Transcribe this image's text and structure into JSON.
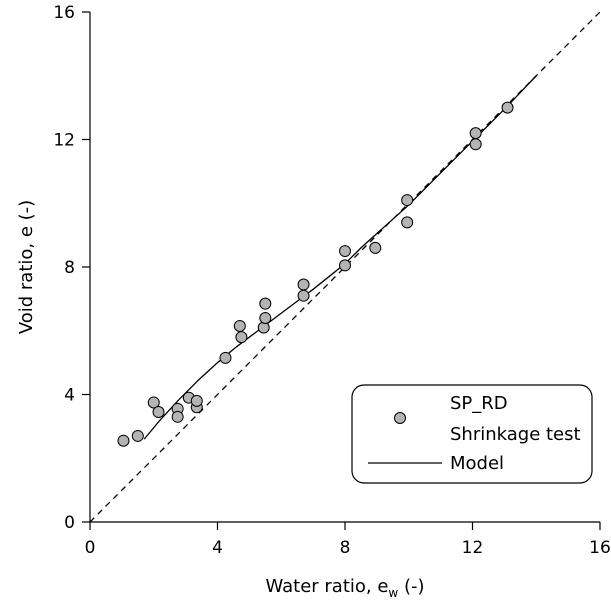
{
  "chart_data": {
    "type": "scatter",
    "xlabel": "Water ratio, e",
    "xlabel_sub": "w",
    "xlabel_unit": " (-)",
    "ylabel": "Void ratio, e (-)",
    "xlim": [
      0,
      16
    ],
    "ylim": [
      0,
      16
    ],
    "xticks": [
      0,
      4,
      8,
      12,
      16
    ],
    "yticks": [
      0,
      4,
      8,
      12,
      16
    ],
    "xtick_labels": [
      "0",
      "4",
      "8",
      "12",
      "16"
    ],
    "ytick_labels": [
      "0",
      "4",
      "8",
      "12",
      "16"
    ],
    "grid": false,
    "legend": {
      "placement": "lower-right",
      "entries": [
        {
          "label_line1": "SP_RD",
          "label_line2": "Shrinkage test",
          "marker": "circle"
        },
        {
          "label": "Model",
          "marker": "line"
        }
      ]
    },
    "series": [
      {
        "name": "SP_RD Shrinkage test",
        "kind": "scatter",
        "color": "#b4b4b4",
        "edge_color": "#000000",
        "x": [
          1.05,
          1.5,
          2.0,
          2.15,
          2.75,
          2.75,
          3.1,
          3.35,
          3.35,
          4.25,
          4.7,
          4.75,
          5.45,
          5.5,
          5.5,
          6.7,
          6.7,
          8.0,
          8.0,
          8.95,
          9.95,
          9.95,
          12.1,
          12.1,
          13.1
        ],
        "y": [
          2.55,
          2.7,
          3.75,
          3.45,
          3.55,
          3.3,
          3.9,
          3.6,
          3.8,
          5.15,
          6.15,
          5.8,
          6.1,
          6.4,
          6.85,
          7.1,
          7.45,
          8.5,
          8.05,
          8.6,
          10.1,
          9.4,
          12.2,
          11.85,
          13.0
        ]
      },
      {
        "name": "Model",
        "kind": "line",
        "color": "#000000",
        "x": [
          1.7,
          2.2,
          2.8,
          3.4,
          4.0,
          4.6,
          5.2,
          5.8,
          6.4,
          7.0,
          7.5,
          8.0,
          8.5,
          9.0,
          9.5,
          10.0,
          11.0,
          12.0,
          13.0,
          14.0
        ],
        "y": [
          2.6,
          3.2,
          3.85,
          4.45,
          5.0,
          5.5,
          5.95,
          6.4,
          6.85,
          7.3,
          7.7,
          8.1,
          8.6,
          9.05,
          9.5,
          9.95,
          10.95,
          11.95,
          12.95,
          14.0
        ]
      },
      {
        "name": "1:1",
        "kind": "dashed-line",
        "color": "#000000",
        "x": [
          0,
          16
        ],
        "y": [
          0,
          16
        ]
      }
    ]
  }
}
